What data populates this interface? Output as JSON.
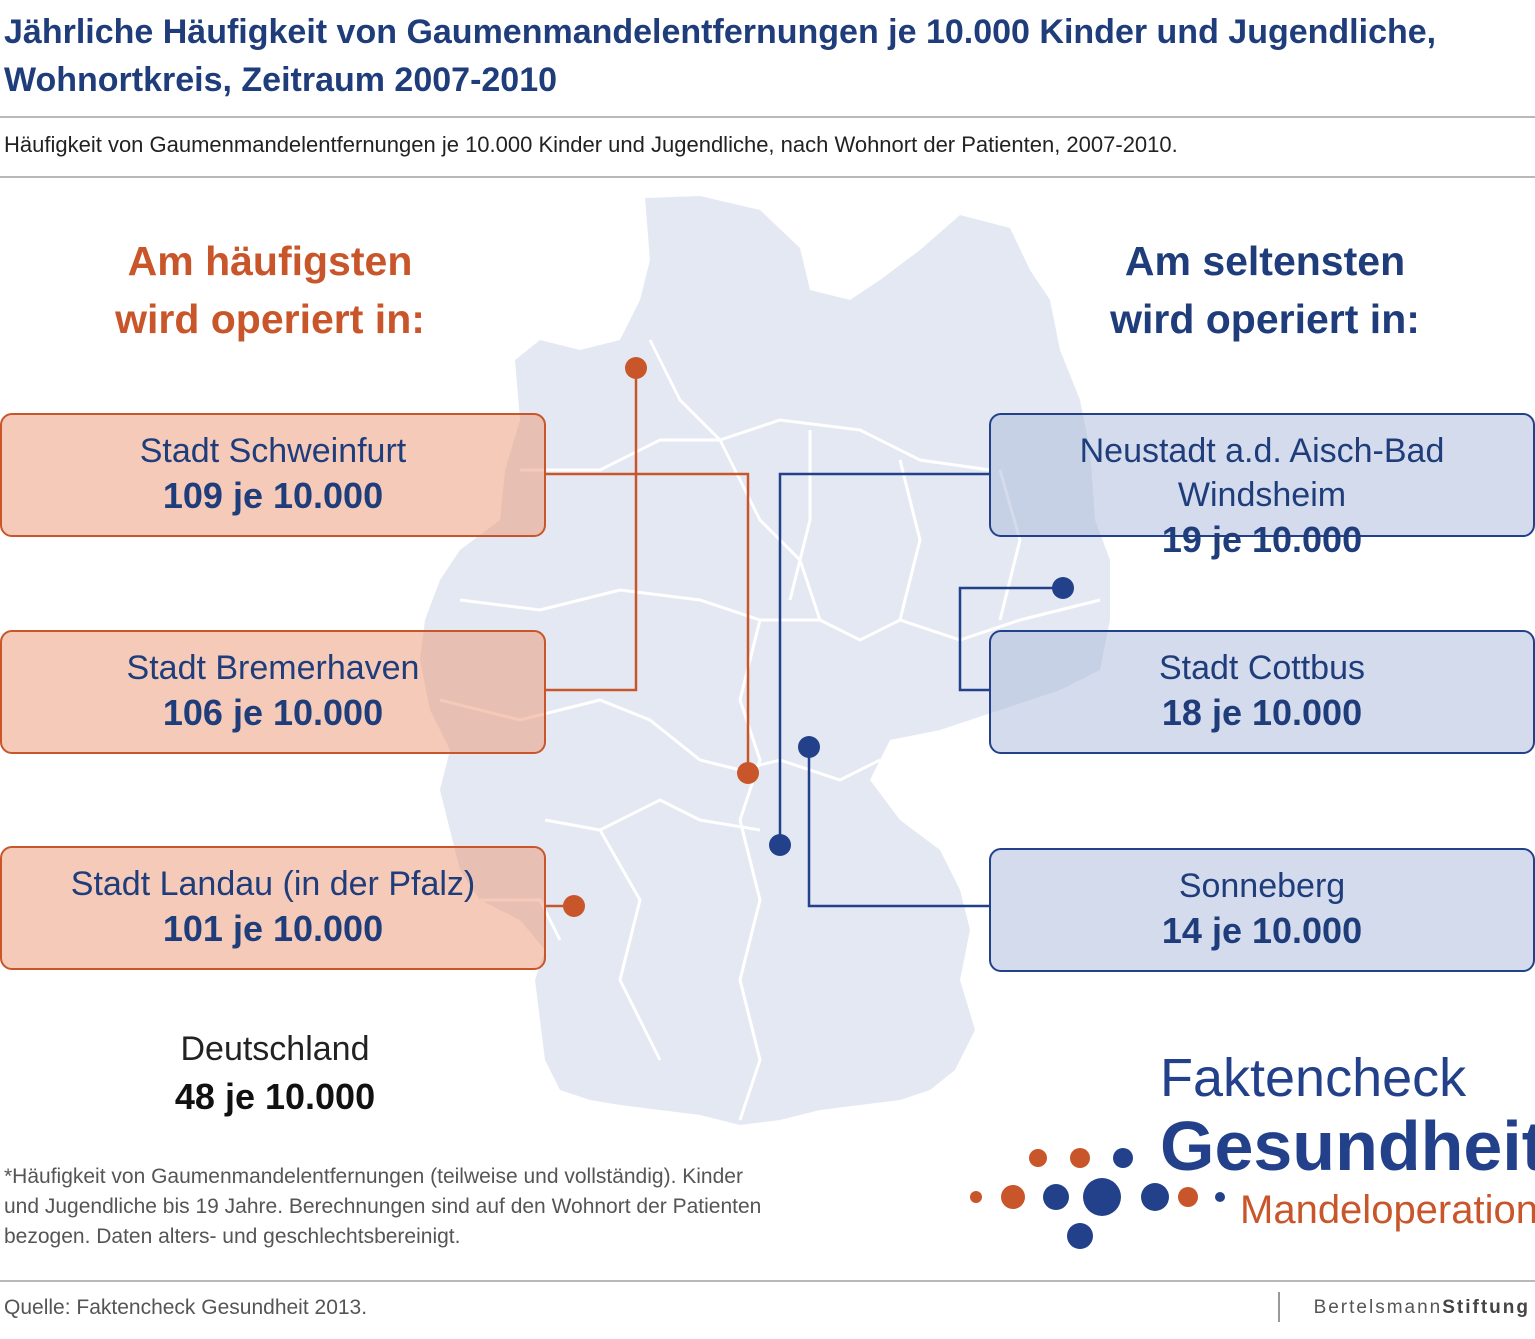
{
  "title": "Jährliche Häufigkeit von Gaumenmandelentfernungen je 10.000 Kinder und Jugendliche, Wohnortkreis, Zeitraum 2007-2010",
  "subtitle": "Häufigkeit von Gaumenmandelentfernungen je 10.000 Kinder und Jugendliche, nach Wohnort der Patienten, 2007-2010.",
  "headings": {
    "most_line1": "Am häufigsten",
    "most_line2": "wird operiert in:",
    "least_line1": "Am seltensten",
    "least_line2": "wird operiert in:"
  },
  "most_frequent": [
    {
      "name": "Stadt Schweinfurt",
      "value": "109 je 10.000"
    },
    {
      "name": "Stadt Bremerhaven",
      "value": "106 je 10.000"
    },
    {
      "name": "Stadt Landau (in der Pfalz)",
      "value": "101 je 10.000"
    }
  ],
  "least_frequent": [
    {
      "name": "Neustadt a.d. Aisch-Bad Windsheim",
      "value": "19 je 10.000"
    },
    {
      "name": "Stadt Cottbus",
      "value": "18 je 10.000"
    },
    {
      "name": "Sonneberg",
      "value": "14 je 10.000"
    }
  ],
  "germany": {
    "name": "Deutschland",
    "value": "48 je 10.000"
  },
  "footnote": "*Häufigkeit von Gaumenmandelentfernungen (teilweise und vollständig). Kinder und Jugendliche bis 19 Jahre. Berechnungen sind auf den Wohnort der Patienten bezogen. Daten alters- und geschlechtsbereinigt.",
  "source": "Quelle: Faktencheck Gesundheit 2013.",
  "brand": {
    "part1": "Bertelsmann",
    "part2": "Stiftung"
  },
  "logo": {
    "line1": "Faktencheck",
    "line2": "Gesundheit",
    "line3": "Mandeloperation"
  },
  "colors": {
    "orange": "#c8562a",
    "blue": "#23418b",
    "map": "#e3e8f2"
  }
}
